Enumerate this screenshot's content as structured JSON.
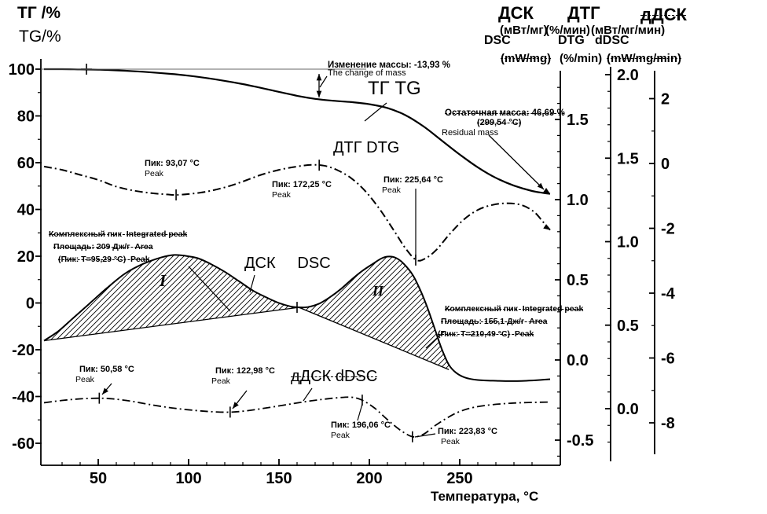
{
  "left_axis_title": {
    "ru": "ТГ /%",
    "en": "TG/%"
  },
  "right_headers": {
    "dsc_ru": "ДСК",
    "dtg_ru": "ДТГ",
    "ddsc_ru": "дДСК",
    "dsc_unit_ru": "(мВт/мг)",
    "dtg_unit_ru": "(%/мин)",
    "ddsc_unit_ru": "(мВт/мг/мин)",
    "dsc_en": "DSC",
    "dtg_en": "DTG",
    "ddsc_en": "dDSC",
    "dsc_unit_en": "(mW/mg)",
    "dtg_unit_en": "(%/min)",
    "ddsc_unit_en": "(mW/mg/min)"
  },
  "x_axis_label": "Температура, °С",
  "curve_labels": {
    "tg": "ТГ TG",
    "dtg": "ДТГ DTG",
    "dsc": "ДСК     DSC",
    "ddsc": "дДСК dDSC",
    "region1": "I",
    "region2": "II"
  },
  "annotations": {
    "mass_change": {
      "ru": "Изменение массы: -13,93 %",
      "en": "The change of mass"
    },
    "residual_mass": {
      "ru": "Остаточная масса: 46,69 %",
      "temp": "(299,54 °C)",
      "en": "Residual mass"
    },
    "peaks": {
      "dtg_93": {
        "ru": "Пик: 93,07 °C",
        "en": "Peak"
      },
      "dtg_172": {
        "ru": "Пик: 172,25 °C",
        "en": "Peak"
      },
      "dtg_225": {
        "ru": "Пик: 225,64 °C",
        "en": "Peak"
      },
      "ddsc_50": {
        "ru": "Пик: 50,58 °C",
        "en": "Peak"
      },
      "ddsc_122": {
        "ru": "Пик: 122,98 °C",
        "en": "Peak"
      },
      "ddsc_196": {
        "ru": "Пик: 196,06 °C",
        "en": "Peak"
      },
      "ddsc_223": {
        "ru": "Пик: 223,83 °C",
        "en": "Peak"
      }
    },
    "integrated_peak_1": {
      "line1": "Комплексный пик  Integrated peak",
      "line2": "Площадь: 209 Дж/г  Area",
      "line3": "(Пик: T=95,29 °C)  Peak"
    },
    "integrated_peak_2": {
      "line1": "Комплексный пик  Integrated peak",
      "line2": "Площадь: 155,1 Дж/г  Area",
      "line3": "(Пик: T=210,49 °C)  Peak"
    }
  },
  "chart_data": {
    "type": "line",
    "x_axis": {
      "label": "Температура, °С",
      "unit": "°C",
      "ticks": [
        50,
        100,
        150,
        200,
        250
      ],
      "range": [
        20,
        300
      ]
    },
    "y_axes": {
      "tg": {
        "label": "ТГ /% TG/%",
        "ticks": [
          100,
          80,
          60,
          40,
          20,
          0,
          -20,
          -40,
          -60
        ]
      },
      "dsc": {
        "label": "ДСК (мВт/мг) DSC (mW/mg)",
        "ticks": [
          "1.5",
          "1.0",
          "0.5",
          "0.0",
          "-0.5"
        ]
      },
      "dtg": {
        "label": "ДТГ (%/мин) DTG (%/min)",
        "ticks": [
          "2.0",
          "1.5",
          "1.0",
          "0.5",
          "0.0"
        ]
      },
      "ddsc": {
        "label": "дДСК (мВт/мг/мин) dDSC (mW/mg/min)",
        "ticks": [
          "2",
          "0",
          "-2",
          "-4",
          "-6",
          "-8"
        ]
      }
    },
    "series": [
      {
        "id": "tg",
        "name": "ТГ TG",
        "axis": "tg",
        "unit": "%",
        "style": "solid",
        "points": [
          [
            20,
            100
          ],
          [
            30,
            100
          ],
          [
            40,
            99.9
          ],
          [
            50,
            99.8
          ],
          [
            60,
            99.5
          ],
          [
            70,
            99.1
          ],
          [
            80,
            98.6
          ],
          [
            90,
            98.0
          ],
          [
            100,
            97.2
          ],
          [
            110,
            96.2
          ],
          [
            120,
            95.0
          ],
          [
            130,
            93.6
          ],
          [
            140,
            92.0
          ],
          [
            150,
            90.3
          ],
          [
            160,
            88.6
          ],
          [
            170,
            87.3
          ],
          [
            180,
            86.5
          ],
          [
            190,
            85.9
          ],
          [
            200,
            85.0
          ],
          [
            210,
            83.4
          ],
          [
            220,
            80.3
          ],
          [
            230,
            75.5
          ],
          [
            240,
            69.5
          ],
          [
            250,
            63.5
          ],
          [
            260,
            58.0
          ],
          [
            270,
            53.5
          ],
          [
            280,
            50.2
          ],
          [
            290,
            47.9
          ],
          [
            296,
            47.1
          ],
          [
            300,
            46.7
          ]
        ]
      },
      {
        "id": "dtg",
        "name": "ДТГ DTG",
        "axis": "dtg",
        "unit": "%/мин",
        "style": "dashdot",
        "points": [
          [
            20,
            1.45
          ],
          [
            30,
            1.43
          ],
          [
            40,
            1.4
          ],
          [
            50,
            1.37
          ],
          [
            60,
            1.33
          ],
          [
            70,
            1.305
          ],
          [
            80,
            1.29
          ],
          [
            88,
            1.283
          ],
          [
            93,
            1.28
          ],
          [
            100,
            1.285
          ],
          [
            110,
            1.3
          ],
          [
            120,
            1.325
          ],
          [
            130,
            1.36
          ],
          [
            140,
            1.4
          ],
          [
            150,
            1.43
          ],
          [
            160,
            1.45
          ],
          [
            168,
            1.46
          ],
          [
            175,
            1.455
          ],
          [
            182,
            1.43
          ],
          [
            190,
            1.38
          ],
          [
            198,
            1.3
          ],
          [
            206,
            1.19
          ],
          [
            214,
            1.06
          ],
          [
            220,
            0.96
          ],
          [
            226,
            0.89
          ],
          [
            231,
            0.9
          ],
          [
            237,
            0.95
          ],
          [
            244,
            1.04
          ],
          [
            252,
            1.13
          ],
          [
            260,
            1.19
          ],
          [
            268,
            1.22
          ],
          [
            276,
            1.23
          ],
          [
            284,
            1.22
          ],
          [
            291,
            1.18
          ],
          [
            296,
            1.12
          ],
          [
            300,
            1.07
          ]
        ]
      },
      {
        "id": "dsc",
        "name": "ДСК DSC",
        "axis": "dsc",
        "unit": "мВт/мг",
        "style": "solid",
        "points": [
          [
            20,
            0.12
          ],
          [
            28,
            0.18
          ],
          [
            36,
            0.26
          ],
          [
            45,
            0.35
          ],
          [
            55,
            0.45
          ],
          [
            65,
            0.54
          ],
          [
            75,
            0.6
          ],
          [
            85,
            0.64
          ],
          [
            92,
            0.655
          ],
          [
            98,
            0.65
          ],
          [
            105,
            0.635
          ],
          [
            112,
            0.6
          ],
          [
            120,
            0.55
          ],
          [
            128,
            0.49
          ],
          [
            136,
            0.43
          ],
          [
            144,
            0.385
          ],
          [
            150,
            0.355
          ],
          [
            156,
            0.335
          ],
          [
            161,
            0.328
          ],
          [
            166,
            0.33
          ],
          [
            172,
            0.35
          ],
          [
            178,
            0.39
          ],
          [
            184,
            0.44
          ],
          [
            190,
            0.5
          ],
          [
            196,
            0.555
          ],
          [
            202,
            0.6
          ],
          [
            207,
            0.635
          ],
          [
            211,
            0.645
          ],
          [
            215,
            0.635
          ],
          [
            219,
            0.6
          ],
          [
            224,
            0.53
          ],
          [
            228,
            0.44
          ],
          [
            232,
            0.33
          ],
          [
            236,
            0.2
          ],
          [
            240,
            0.07
          ],
          [
            244,
            -0.03
          ],
          [
            248,
            -0.08
          ],
          [
            253,
            -0.11
          ],
          [
            260,
            -0.125
          ],
          [
            270,
            -0.13
          ],
          [
            280,
            -0.132
          ],
          [
            290,
            -0.128
          ],
          [
            300,
            -0.12
          ]
        ]
      },
      {
        "id": "ddsc",
        "name": "дДСК dDSC",
        "axis": "ddsc",
        "unit": "мВт/мг/мин",
        "style": "dashdot",
        "points": [
          [
            20,
            -7.38
          ],
          [
            30,
            -7.31
          ],
          [
            40,
            -7.26
          ],
          [
            50,
            -7.24
          ],
          [
            58,
            -7.26
          ],
          [
            68,
            -7.33
          ],
          [
            80,
            -7.45
          ],
          [
            92,
            -7.55
          ],
          [
            104,
            -7.62
          ],
          [
            114,
            -7.66
          ],
          [
            123,
            -7.67
          ],
          [
            132,
            -7.63
          ],
          [
            142,
            -7.55
          ],
          [
            152,
            -7.46
          ],
          [
            162,
            -7.37
          ],
          [
            172,
            -7.29
          ],
          [
            182,
            -7.23
          ],
          [
            190,
            -7.21
          ],
          [
            196,
            -7.3
          ],
          [
            203,
            -7.55
          ],
          [
            210,
            -7.9
          ],
          [
            217,
            -8.22
          ],
          [
            224,
            -8.43
          ],
          [
            230,
            -8.35
          ],
          [
            236,
            -8.1
          ],
          [
            243,
            -7.85
          ],
          [
            250,
            -7.65
          ],
          [
            258,
            -7.52
          ],
          [
            268,
            -7.44
          ],
          [
            280,
            -7.39
          ],
          [
            290,
            -7.37
          ],
          [
            300,
            -7.36
          ]
        ]
      }
    ],
    "dsc_baselines": [
      {
        "from": [
          20,
          0.12
        ],
        "to": [
          161,
          0.328
        ]
      },
      {
        "from": [
          161,
          0.328
        ],
        "to": [
          244,
          -0.06
        ]
      }
    ],
    "hatched_regions": [
      {
        "series": "dsc",
        "from": 20,
        "to": 161,
        "baseline": 0,
        "label": "I"
      },
      {
        "series": "dsc",
        "from": 161,
        "to": 244,
        "baseline": 1,
        "label": "II"
      }
    ],
    "peak_markers": [
      {
        "series": "dtg",
        "T": 93.07,
        "v": 1.28,
        "shape": "tick"
      },
      {
        "series": "dtg",
        "T": 172.25,
        "v": 1.458,
        "shape": "tick"
      },
      {
        "series": "dtg",
        "T": 225.64,
        "v": 0.89,
        "shape": "tick"
      },
      {
        "series": "dsc",
        "T": 160,
        "v": 0.328,
        "shape": "cross"
      },
      {
        "series": "tg",
        "T": 43.5,
        "v": 100,
        "shape": "cross"
      },
      {
        "series": "ddsc",
        "T": 50.58,
        "v": -7.24,
        "shape": "tick"
      },
      {
        "series": "ddsc",
        "T": 122.98,
        "v": -7.67,
        "shape": "tick"
      },
      {
        "series": "ddsc",
        "T": 196.06,
        "v": -7.3,
        "shape": "tick"
      },
      {
        "series": "ddsc",
        "T": 223.83,
        "v": -8.43,
        "shape": "tick"
      }
    ],
    "key_values": {
      "mass_change_pct": -13.93,
      "residual_mass_pct": 46.69,
      "residual_mass_temp_c": 299.54,
      "peak1_area_j_per_g": 209,
      "peak1_temp_c": 95.29,
      "peak2_area_j_per_g": 155.1,
      "peak2_temp_c": 210.49
    }
  }
}
